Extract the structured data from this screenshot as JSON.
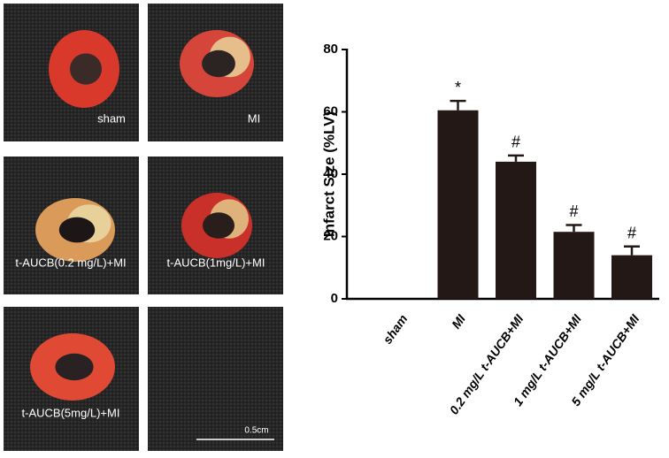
{
  "panels": [
    {
      "label": "sham"
    },
    {
      "label": "MI"
    },
    {
      "label": "t-AUCB(0.2 mg/L)+MI"
    },
    {
      "label": "t-AUCB(1mg/L)+MI"
    },
    {
      "label": "t-AUCB(5mg/L)+MI"
    },
    {
      "label": null
    }
  ],
  "scale_bar_label": "0.5cm",
  "chart_data": {
    "type": "bar",
    "ylabel": "Infarct Size (%LV)",
    "categories": [
      "sham",
      "MI",
      "0.2 mg/L t-AUCB+MI",
      "1 mg/L t-AUCB+MI",
      "5 mg/L t-AUCB+MI"
    ],
    "values": [
      0,
      60.5,
      44,
      21.5,
      14
    ],
    "errors": [
      0,
      3,
      2,
      2.2,
      2.8
    ],
    "annotations": [
      null,
      "*",
      "#",
      "#",
      "#"
    ],
    "color": "#231815",
    "ylim": [
      0,
      80
    ],
    "yticks": [
      0,
      20,
      40,
      60,
      80
    ],
    "grid": false
  }
}
